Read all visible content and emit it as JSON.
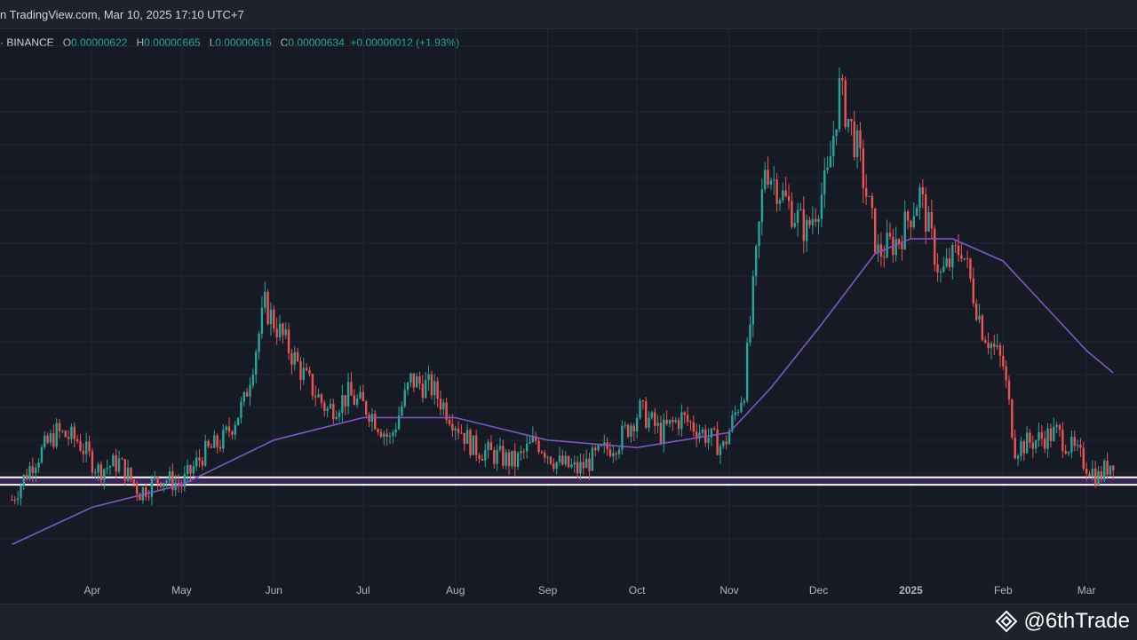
{
  "header": {
    "source_text": "n TradingView.com, Mar 10, 2025 17:10 UTC+7"
  },
  "legend": {
    "exchange": "· BINANCE",
    "open_label": "O",
    "open": "0.00000622",
    "high_label": "H",
    "high": "0.00000665",
    "low_label": "L",
    "low": "0.00000616",
    "close_label": "C",
    "close": "0.00000634",
    "change": "+0.00000012 (+1.93%)"
  },
  "watermark": {
    "text": "@6thTrade",
    "icon": "binance-diamond-icon"
  },
  "colors": {
    "background": "#161a25",
    "up": "#26a69a",
    "down": "#ef5350",
    "ma": "#7e57c2",
    "zone_fill": "#4a2a6e",
    "zone_border": "#ffffff",
    "grid": "#232734",
    "axis_text": "#b2b5be"
  },
  "chart_data": {
    "type": "line",
    "description_kind": "candlestick",
    "x_axis_labels": [
      "Apr",
      "May",
      "Jun",
      "Jul",
      "Aug",
      "Sep",
      "Oct",
      "Nov",
      "Dec",
      "2025",
      "Feb",
      "Mar"
    ],
    "x_axis_label_bold": "2025",
    "close_series": [
      [
        "2024-03-05",
        5.8e-06
      ],
      [
        "2024-03-12",
        6.3e-06
      ],
      [
        "2024-03-20",
        6.7e-06
      ],
      [
        "2024-03-27",
        6.6e-06
      ],
      [
        "2024-04-03",
        6.2e-06
      ],
      [
        "2024-04-10",
        6.3e-06
      ],
      [
        "2024-04-17",
        5.9e-06
      ],
      [
        "2024-04-24",
        6.1e-06
      ],
      [
        "2024-05-01",
        6e-06
      ],
      [
        "2024-05-08",
        6.4e-06
      ],
      [
        "2024-05-15",
        6.6e-06
      ],
      [
        "2024-05-22",
        7.1e-06
      ],
      [
        "2024-05-29",
        8.4e-06
      ],
      [
        "2024-06-05",
        7.9e-06
      ],
      [
        "2024-06-12",
        7.4e-06
      ],
      [
        "2024-06-19",
        7e-06
      ],
      [
        "2024-06-26",
        7.2e-06
      ],
      [
        "2024-07-03",
        7e-06
      ],
      [
        "2024-07-10",
        6.6e-06
      ],
      [
        "2024-07-17",
        7.4e-06
      ],
      [
        "2024-07-24",
        7.3e-06
      ],
      [
        "2024-07-31",
        6.9e-06
      ],
      [
        "2024-08-07",
        6.5e-06
      ],
      [
        "2024-08-14",
        6.4e-06
      ],
      [
        "2024-08-21",
        6.3e-06
      ],
      [
        "2024-08-28",
        6.6e-06
      ],
      [
        "2024-09-04",
        6.3e-06
      ],
      [
        "2024-09-11",
        6.2e-06
      ],
      [
        "2024-09-18",
        6.4e-06
      ],
      [
        "2024-09-25",
        6.6e-06
      ],
      [
        "2024-10-02",
        7e-06
      ],
      [
        "2024-10-09",
        6.7e-06
      ],
      [
        "2024-10-16",
        6.9e-06
      ],
      [
        "2024-10-23",
        6.7e-06
      ],
      [
        "2024-10-30",
        6.5e-06
      ],
      [
        "2024-11-06",
        7.3e-06
      ],
      [
        "2024-11-13",
        1.03e-05
      ],
      [
        "2024-11-20",
        9.8e-06
      ],
      [
        "2024-11-27",
        9.4e-06
      ],
      [
        "2024-12-04",
        1.01e-05
      ],
      [
        "2024-12-08",
        1.13e-05
      ],
      [
        "2024-12-14",
        1.05e-05
      ],
      [
        "2024-12-21",
        9.1e-06
      ],
      [
        "2024-12-28",
        9.3e-06
      ],
      [
        "2025-01-04",
        9.9e-06
      ],
      [
        "2025-01-11",
        8.8e-06
      ],
      [
        "2025-01-18",
        9.2e-06
      ],
      [
        "2025-01-25",
        8.1e-06
      ],
      [
        "2025-02-01",
        7.6e-06
      ],
      [
        "2025-02-05",
        6.5e-06
      ],
      [
        "2025-02-12",
        6.6e-06
      ],
      [
        "2025-02-19",
        6.7e-06
      ],
      [
        "2025-02-26",
        6.4e-06
      ],
      [
        "2025-03-05",
        6.1e-06
      ],
      [
        "2025-03-10",
        6.34e-06
      ]
    ],
    "moving_average": [
      [
        "2024-03-05",
        5.2e-06
      ],
      [
        "2024-04-01",
        5.7e-06
      ],
      [
        "2024-05-01",
        6e-06
      ],
      [
        "2024-06-01",
        6.6e-06
      ],
      [
        "2024-07-01",
        6.9e-06
      ],
      [
        "2024-08-01",
        6.9e-06
      ],
      [
        "2024-09-01",
        6.6e-06
      ],
      [
        "2024-10-01",
        6.5e-06
      ],
      [
        "2024-11-01",
        6.7e-06
      ],
      [
        "2024-11-15",
        7.3e-06
      ],
      [
        "2024-12-01",
        8.1e-06
      ],
      [
        "2024-12-20",
        9.1e-06
      ],
      [
        "2025-01-01",
        9.3e-06
      ],
      [
        "2025-01-15",
        9.3e-06
      ],
      [
        "2025-02-01",
        9e-06
      ],
      [
        "2025-02-15",
        8.4e-06
      ],
      [
        "2025-03-01",
        7.8e-06
      ],
      [
        "2025-03-10",
        7.5e-06
      ]
    ],
    "support_zone": [
      6e-06,
      6.1e-06
    ],
    "ylim": [
      4.8e-06,
      1.2e-05
    ],
    "grid": true
  }
}
